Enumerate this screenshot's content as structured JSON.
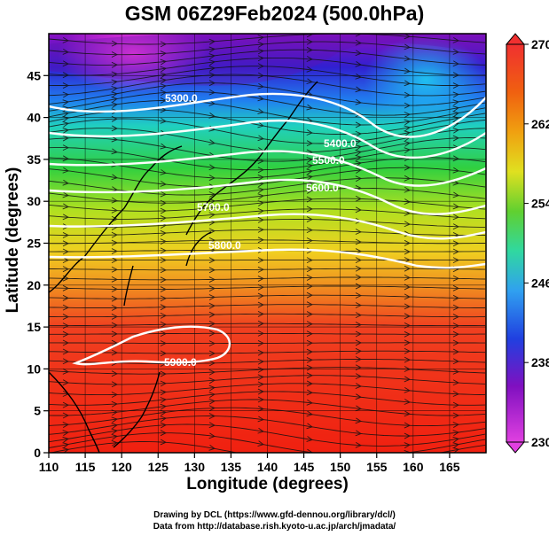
{
  "title": "GSM 06Z29Feb2024 (500.0hPa)",
  "x_axis": {
    "label": "Longitude (degrees)",
    "range": [
      110,
      170
    ],
    "ticks": [
      "110",
      "115",
      "120",
      "125",
      "130",
      "135",
      "140",
      "145",
      "150",
      "155",
      "160",
      "165"
    ],
    "tick_values": [
      110,
      115,
      120,
      125,
      130,
      135,
      140,
      145,
      150,
      155,
      160,
      165
    ]
  },
  "y_axis": {
    "label": "Latitude  (degrees)",
    "range": [
      0,
      50
    ],
    "ticks": [
      "0",
      "5",
      "10",
      "15",
      "20",
      "25",
      "30",
      "35",
      "40",
      "45"
    ],
    "tick_values": [
      0,
      5,
      10,
      15,
      20,
      25,
      30,
      35,
      40,
      45
    ]
  },
  "colorbar": {
    "ticks": [
      "270",
      "262",
      "254",
      "246",
      "238",
      "230"
    ],
    "tick_values": [
      270,
      262,
      254,
      246,
      238,
      230
    ],
    "range": [
      230,
      270
    ],
    "colors": [
      "#e040e0",
      "#8000c0",
      "#2040e0",
      "#30a0f0",
      "#30d8c0",
      "#30d040",
      "#a0e020",
      "#f0e020",
      "#f0a010",
      "#f06010",
      "#f02010"
    ]
  },
  "contours": [
    {
      "label": "5300.0"
    },
    {
      "label": "5400.0"
    },
    {
      "label": "5500.0"
    },
    {
      "label": "5600.0"
    },
    {
      "label": "5700.0"
    },
    {
      "label": "5800.0"
    },
    {
      "label": "5900.0"
    }
  ],
  "credits": {
    "line1": "Drawing by DCL (https://www.gfd-dennou.org/library/dcl/)",
    "line2": "Data from http://database.rish.kyoto-u.ac.jp/arch/jmadata/"
  }
}
